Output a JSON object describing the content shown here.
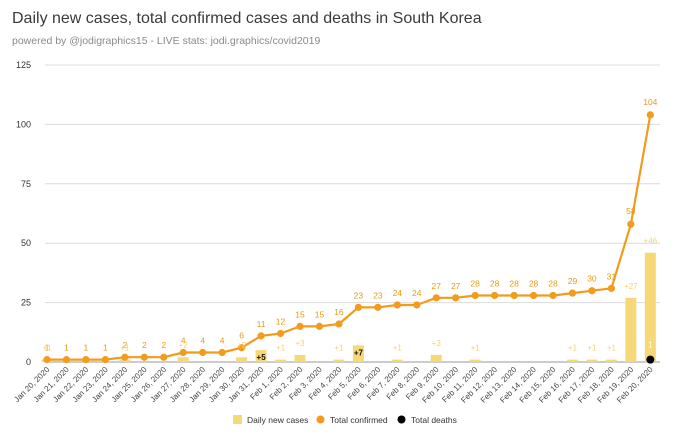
{
  "title": "Daily new cases, total confirmed cases and deaths in South Korea",
  "subtitle": "powered by @jodigraphics15 - LIVE stats: jodi.graphics/covid2019",
  "colors": {
    "new_cases": "#f7d877",
    "confirmed": "#f29b1c",
    "deaths": "#000000",
    "grid": "#dcdcdc",
    "confirmed_label": "#e89a10",
    "new_label": "#f6d36a"
  },
  "chart_data": {
    "type": "bar+line",
    "title": "Daily new cases, total confirmed cases and deaths in South Korea",
    "ylim": [
      0,
      125
    ],
    "yticks": [
      "0",
      "25",
      "50",
      "75",
      "100",
      "125"
    ],
    "categories": [
      "Jan 20, 2020",
      "Jan 21, 2020",
      "Jan 22, 2020",
      "Jan 23, 2020",
      "Jan 24, 2020",
      "Jan 25, 2020",
      "Jan 26, 2020",
      "Jan 27, 2020",
      "Jan 28, 2020",
      "Jan 29, 2020",
      "Jan 30, 2020",
      "Jan 31, 2020",
      "Feb 1, 2020",
      "Feb 2, 2020",
      "Feb 3, 2020",
      "Feb 4, 2020",
      "Feb 5, 2020",
      "Feb 6, 2020",
      "Feb 7, 2020",
      "Feb 8, 2020",
      "Feb 9, 2020",
      "Feb 10, 2020",
      "Feb 11, 2020",
      "Feb 12, 2020",
      "Feb 13, 2020",
      "Feb 14, 2020",
      "Feb 15, 2020",
      "Feb 16, 2020",
      "Feb 17, 2020",
      "Feb 18, 2020",
      "Feb 19, 2020",
      "Feb 20, 2020"
    ],
    "series": [
      {
        "name": "Daily new cases",
        "type": "bar",
        "values": [
          1,
          0,
          0,
          0,
          1,
          0,
          0,
          2,
          0,
          0,
          2,
          5,
          1,
          3,
          0,
          1,
          7,
          0,
          1,
          0,
          3,
          0,
          1,
          0,
          0,
          0,
          0,
          1,
          1,
          1,
          27,
          46
        ],
        "labels": [
          "+1",
          "",
          "",
          "",
          "+1",
          "",
          "",
          "+2",
          "",
          "",
          "+2",
          "+5",
          "+1",
          "+3",
          "",
          "+1",
          "+7",
          "",
          "+1",
          "",
          "+3",
          "",
          "+1",
          "",
          "",
          "",
          "",
          "+1",
          "+1",
          "+1",
          "+27",
          "+46"
        ]
      },
      {
        "name": "Total confirmed",
        "type": "line",
        "values": [
          1,
          1,
          1,
          1,
          2,
          2,
          2,
          4,
          4,
          4,
          6,
          11,
          12,
          15,
          15,
          16,
          23,
          23,
          24,
          24,
          27,
          27,
          28,
          28,
          28,
          28,
          28,
          29,
          30,
          31,
          58,
          104
        ]
      },
      {
        "name": "Total deaths",
        "type": "scatter",
        "values": [
          0,
          0,
          0,
          0,
          0,
          0,
          0,
          0,
          0,
          0,
          0,
          0,
          0,
          0,
          0,
          0,
          0,
          0,
          0,
          0,
          0,
          0,
          0,
          0,
          0,
          0,
          0,
          0,
          0,
          0,
          0,
          1
        ]
      }
    ],
    "legend": [
      "Daily new cases",
      "Total confirmed",
      "Total deaths"
    ],
    "legend_position": "bottom"
  }
}
